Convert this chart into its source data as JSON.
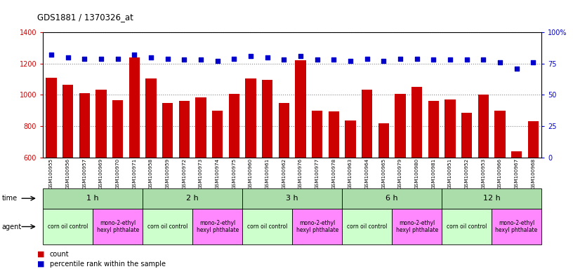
{
  "title": "GDS1881 / 1370326_at",
  "samples": [
    "GSM100955",
    "GSM100956",
    "GSM100957",
    "GSM100969",
    "GSM100970",
    "GSM100971",
    "GSM100958",
    "GSM100959",
    "GSM100972",
    "GSM100973",
    "GSM100974",
    "GSM100975",
    "GSM100960",
    "GSM100961",
    "GSM100962",
    "GSM100976",
    "GSM100977",
    "GSM100978",
    "GSM100963",
    "GSM100964",
    "GSM100965",
    "GSM100979",
    "GSM100980",
    "GSM100981",
    "GSM100951",
    "GSM100952",
    "GSM100953",
    "GSM100966",
    "GSM100967",
    "GSM100968"
  ],
  "counts": [
    1110,
    1065,
    1010,
    1035,
    965,
    1240,
    1105,
    950,
    960,
    985,
    900,
    1005,
    1105,
    1095,
    950,
    1220,
    900,
    895,
    835,
    1035,
    820,
    1005,
    1050,
    960,
    970,
    885,
    1000,
    900,
    640,
    830
  ],
  "percentile_ranks": [
    82,
    80,
    79,
    79,
    79,
    82,
    80,
    79,
    78,
    78,
    77,
    79,
    81,
    80,
    78,
    81,
    78,
    78,
    77,
    79,
    77,
    79,
    79,
    78,
    78,
    78,
    78,
    76,
    71,
    76
  ],
  "bar_color": "#cc0000",
  "dot_color": "#0000cc",
  "ylim_left": [
    600,
    1400
  ],
  "ylim_right": [
    0,
    100
  ],
  "yticks_left": [
    600,
    800,
    1000,
    1200,
    1400
  ],
  "ytick_labels_left": [
    "600",
    "800",
    "1000",
    "1200",
    "1400"
  ],
  "yticks_right": [
    0,
    25,
    50,
    75,
    100
  ],
  "ytick_labels_right": [
    "0",
    "25",
    "50",
    "75",
    "100%"
  ],
  "time_groups": [
    {
      "label": "1 h",
      "start": 0,
      "end": 6
    },
    {
      "label": "2 h",
      "start": 6,
      "end": 12
    },
    {
      "label": "3 h",
      "start": 12,
      "end": 18
    },
    {
      "label": "6 h",
      "start": 18,
      "end": 24
    },
    {
      "label": "12 h",
      "start": 24,
      "end": 30
    }
  ],
  "agent_groups": [
    {
      "label": "corn oil control",
      "start": 0,
      "end": 3,
      "color": "#ccffcc"
    },
    {
      "label": "mono-2-ethyl\nhexyl phthalate",
      "start": 3,
      "end": 6,
      "color": "#ff88ff"
    },
    {
      "label": "corn oil control",
      "start": 6,
      "end": 9,
      "color": "#ccffcc"
    },
    {
      "label": "mono-2-ethyl\nhexyl phthalate",
      "start": 9,
      "end": 12,
      "color": "#ff88ff"
    },
    {
      "label": "corn oil control",
      "start": 12,
      "end": 15,
      "color": "#ccffcc"
    },
    {
      "label": "mono-2-ethyl\nhexyl phthalate",
      "start": 15,
      "end": 18,
      "color": "#ff88ff"
    },
    {
      "label": "corn oil control",
      "start": 18,
      "end": 21,
      "color": "#ccffcc"
    },
    {
      "label": "mono-2-ethyl\nhexyl phthalate",
      "start": 21,
      "end": 24,
      "color": "#ff88ff"
    },
    {
      "label": "corn oil control",
      "start": 24,
      "end": 27,
      "color": "#ccffcc"
    },
    {
      "label": "mono-2-ethyl\nhexyl phthalate",
      "start": 27,
      "end": 30,
      "color": "#ff88ff"
    }
  ],
  "time_color": "#aaddaa",
  "background_color": "#ffffff",
  "chart_bg": "#ffffff",
  "grid_color": "#888888"
}
